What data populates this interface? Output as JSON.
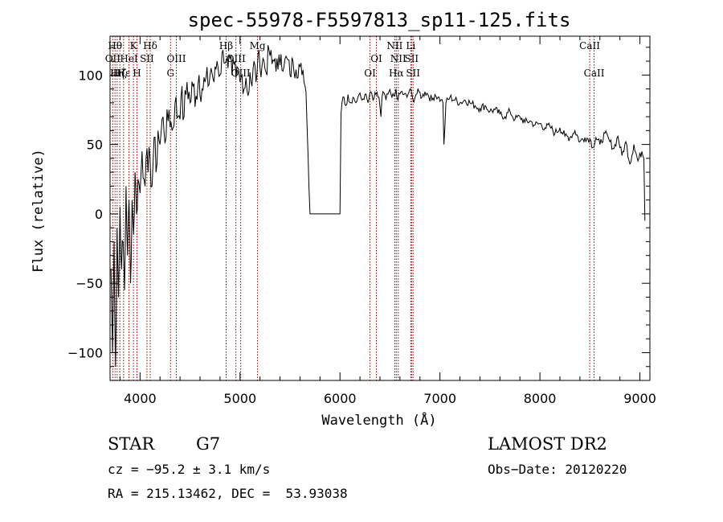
{
  "chart_data": {
    "type": "line",
    "title": "spec-55978-F5597813_sp11-125.fits",
    "xlabel": "Wavelength (Å)",
    "ylabel": "Flux (relative)",
    "xlim": [
      3700,
      9100
    ],
    "ylim": [
      -120,
      128
    ],
    "xticks": [
      4000,
      5000,
      6000,
      7000,
      8000,
      9000
    ],
    "yticks": [
      -100,
      -50,
      0,
      50,
      100
    ],
    "grid": false,
    "line_color": "#000000",
    "marker_color": "#8b0000",
    "series": [
      {
        "x": [
          3710,
          3725,
          3740,
          3755,
          3770,
          3785,
          3800,
          3815,
          3830,
          3845,
          3860,
          3875,
          3890,
          3905,
          3920,
          3935,
          3950,
          3965,
          3980,
          4000,
          4020,
          4040,
          4060,
          4080,
          4100,
          4120,
          4140,
          4160,
          4180,
          4200,
          4230,
          4260,
          4290,
          4320,
          4350,
          4380,
          4410,
          4440,
          4470,
          4500,
          4530,
          4560,
          4590,
          4620,
          4650,
          4680,
          4710,
          4740,
          4770,
          4800,
          4830,
          4860,
          4880,
          4900,
          4920,
          4940,
          4960,
          4980,
          5000,
          5020,
          5040,
          5060,
          5080,
          5100,
          5120,
          5140,
          5160,
          5180,
          5200,
          5230,
          5260,
          5290,
          5320,
          5350,
          5380,
          5410,
          5440,
          5470,
          5500,
          5530,
          5560,
          5590,
          5620,
          5640,
          5650,
          5660,
          5700,
          5800,
          5900,
          6000,
          6010,
          6020,
          6040,
          6060,
          6080,
          6100,
          6130,
          6160,
          6190,
          6220,
          6250,
          6280,
          6310,
          6330,
          6360,
          6390,
          6410,
          6420,
          6430,
          6460,
          6490,
          6520,
          6550,
          6560,
          6580,
          6610,
          6640,
          6670,
          6700,
          6730,
          6760,
          6790,
          6820,
          6850,
          6880,
          6920,
          6950,
          6980,
          7010,
          7030,
          7040,
          7060,
          7100,
          7150,
          7200,
          7250,
          7300,
          7350,
          7400,
          7450,
          7500,
          7550,
          7600,
          7650,
          7700,
          7750,
          7800,
          7850,
          7900,
          7950,
          8000,
          8050,
          8100,
          8150,
          8200,
          8250,
          8300,
          8350,
          8400,
          8450,
          8500,
          8530,
          8560,
          8600,
          8650,
          8700,
          8740,
          8780,
          8820,
          8860,
          8900,
          8940,
          8980,
          9020,
          9040,
          9050
        ],
        "y": [
          -40,
          -100,
          -20,
          -110,
          -10,
          -60,
          5,
          -40,
          -20,
          -55,
          20,
          -30,
          10,
          -50,
          10,
          -15,
          30,
          0,
          25,
          15,
          45,
          25,
          40,
          30,
          40,
          20,
          55,
          30,
          60,
          50,
          70,
          55,
          75,
          60,
          80,
          70,
          85,
          70,
          95,
          80,
          92,
          85,
          100,
          90,
          95,
          92,
          105,
          95,
          110,
          100,
          118,
          110,
          105,
          112,
          100,
          108,
          98,
          105,
          95,
          100,
          90,
          98,
          85,
          102,
          92,
          110,
          95,
          115,
          105,
          112,
          102,
          118,
          108,
          112,
          104,
          115,
          106,
          112,
          100,
          110,
          104,
          108,
          100,
          95,
          92,
          88,
          0,
          0,
          0,
          0,
          72,
          80,
          84,
          78,
          86,
          80,
          84,
          80,
          86,
          82,
          86,
          80,
          88,
          82,
          86,
          84,
          70,
          84,
          88,
          82,
          88,
          84,
          86,
          90,
          82,
          88,
          86,
          84,
          90,
          82,
          86,
          88,
          84,
          88,
          86,
          82,
          86,
          84,
          82,
          80,
          50,
          80,
          84,
          82,
          80,
          82,
          80,
          78,
          76,
          78,
          74,
          75,
          72,
          70,
          74,
          68,
          70,
          66,
          67,
          64,
          65,
          62,
          63,
          58,
          62,
          56,
          55,
          60,
          52,
          55,
          54,
          48,
          55,
          50,
          58,
          52,
          47,
          56,
          42,
          52,
          36,
          50,
          38,
          45,
          40,
          -5
        ]
      }
    ],
    "lines": [
      {
        "x": 3750,
        "label": "Hθ",
        "row": 1
      },
      {
        "x": 3727,
        "label": "OII",
        "row": 2
      },
      {
        "x": 3771,
        "label": "Hη",
        "row": 3
      },
      {
        "x": 3798,
        "label": "Hζ",
        "row": 3
      },
      {
        "x": 3835,
        "label": "Hε",
        "row": 3
      },
      {
        "x": 3889,
        "label": "HeI",
        "row": 2
      },
      {
        "x": 3934,
        "label": "K",
        "row": 1
      },
      {
        "x": 3969,
        "label": "H",
        "row": 3
      },
      {
        "x": 4069,
        "label": "SII",
        "row": 2
      },
      {
        "x": 4102,
        "label": "Hδ",
        "row": 1
      },
      {
        "x": 4305,
        "label": "G",
        "row": 3
      },
      {
        "x": 4363,
        "label": "OIII",
        "row": 2
      },
      {
        "x": 4861,
        "label": "Hβ",
        "row": 1
      },
      {
        "x": 4959,
        "label": "OIII",
        "row": 2
      },
      {
        "x": 5007,
        "label": "OIII",
        "row": 3
      },
      {
        "x": 5175,
        "label": "Mg",
        "row": 1
      },
      {
        "x": 6300,
        "label": "OI",
        "row": 3
      },
      {
        "x": 6364,
        "label": "OI",
        "row": 2
      },
      {
        "x": 6548,
        "label": "NII",
        "row": 1
      },
      {
        "x": 6563,
        "label": "Hα",
        "row": 3
      },
      {
        "x": 6583,
        "label": "NII",
        "row": 2
      },
      {
        "x": 6708,
        "label": "Li",
        "row": 1
      },
      {
        "x": 6716,
        "label": "SII",
        "row": 2
      },
      {
        "x": 6731,
        "label": "SII",
        "row": 3
      },
      {
        "x": 8498,
        "label": "CaII",
        "row": 1
      },
      {
        "x": 8542,
        "label": "CaII",
        "row": 3
      }
    ]
  },
  "footer": {
    "object_class": "STAR",
    "subclass": "G7",
    "survey": "LAMOST DR2",
    "redshift": "cz = −95.2 ± 3.1 km/s",
    "obs_date": "Obs−Date: 20120220",
    "coords": "RA = 215.13462, DEC =  53.93038"
  }
}
